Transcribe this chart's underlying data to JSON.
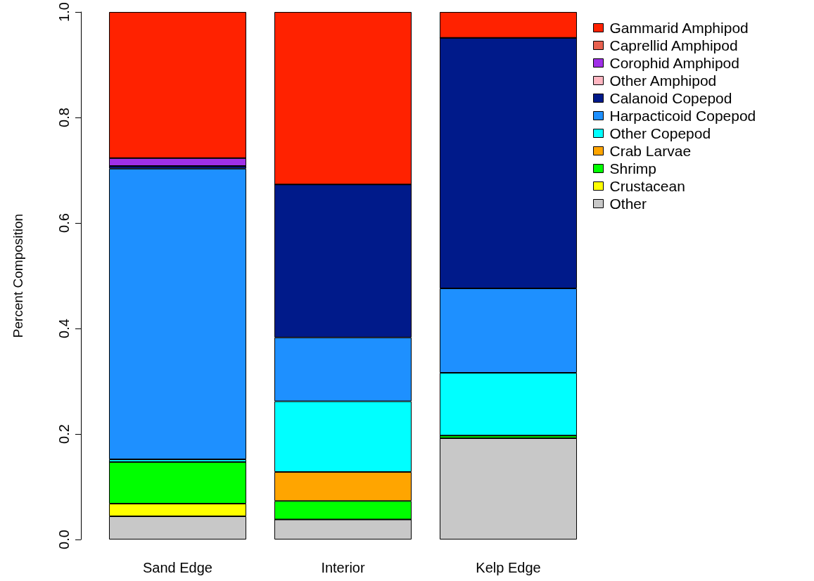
{
  "chart_data": {
    "type": "bar",
    "ylabel": "Percent Composition",
    "categories": [
      "Sand Edge",
      "Interior",
      "Kelp Edge"
    ],
    "stacked": true,
    "ylim": [
      0,
      1
    ],
    "yticks": [
      {
        "value": 0,
        "label": "0.0"
      },
      0.2,
      0.4,
      0.6,
      0.8,
      {
        "value": 1,
        "label": "1.0"
      }
    ],
    "grid": false,
    "legend": "top right",
    "series": [
      {
        "name": "Other",
        "color": "#c8c8c8",
        "values": [
          0.044,
          0.038,
          0.192
        ]
      },
      {
        "name": "Crustacean",
        "color": "#ffff00",
        "values": [
          0.024,
          0,
          0
        ]
      },
      {
        "name": "Shrimp",
        "color": "#00ff00",
        "values": [
          0.079,
          0.035,
          0.005
        ]
      },
      {
        "name": "Crab Larvae",
        "color": "#ffa500",
        "values": [
          0,
          0.055,
          0
        ]
      },
      {
        "name": "Other Copepod",
        "color": "#00ffff",
        "values": [
          0.005,
          0.134,
          0.119
        ]
      },
      {
        "name": "Harpacticoid Copepod",
        "color": "#1e90ff",
        "values": [
          0.551,
          0.121,
          0.16
        ]
      },
      {
        "name": "Calanoid Copepod",
        "color": "#001a8a",
        "values": [
          0.005,
          0.29,
          0.475
        ]
      },
      {
        "name": "Other Amphipod",
        "color": "#ffb6c1",
        "values": [
          0,
          0,
          0
        ]
      },
      {
        "name": "Corophid Amphipod",
        "color": "#a030e8",
        "values": [
          0.015,
          0,
          0
        ]
      },
      {
        "name": "Caprellid Amphipod",
        "color": "#e8614f",
        "values": [
          0,
          0,
          0
        ]
      },
      {
        "name": "Gammarid Amphipod",
        "color": "#ff2200",
        "values": [
          0.277,
          0.327,
          0.049
        ]
      }
    ]
  }
}
